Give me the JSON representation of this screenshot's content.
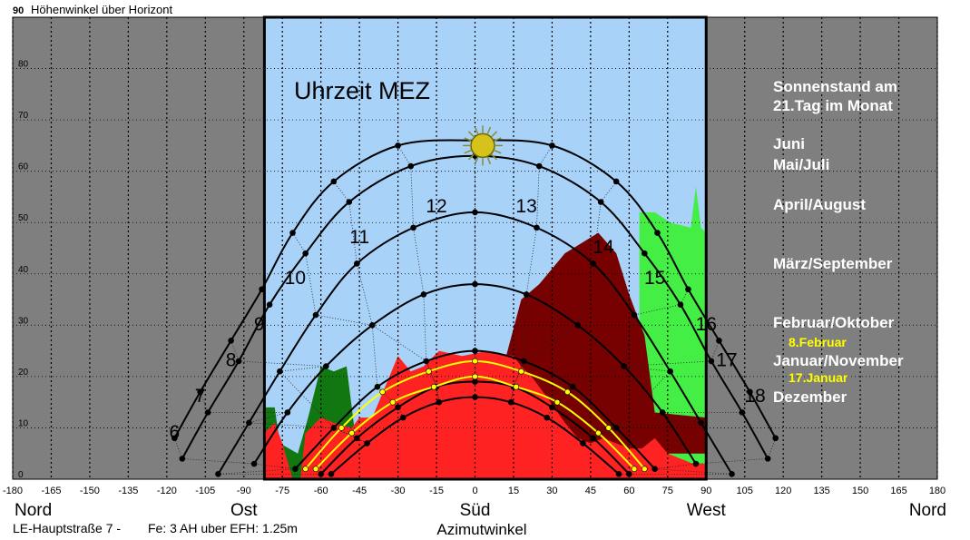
{
  "chart_data": {
    "type": "line",
    "y_axis_label_max": "90",
    "y_axis_title": "Höhenwinkel über Horizont",
    "x_axis_title": "Azimutwinkel",
    "xlim": [
      -180,
      180
    ],
    "ylim": [
      0,
      90
    ],
    "x_ticks": [
      -180,
      -165,
      -150,
      -135,
      -120,
      -105,
      -90,
      -75,
      -60,
      -45,
      -30,
      -15,
      0,
      15,
      30,
      45,
      60,
      75,
      90,
      105,
      120,
      135,
      150,
      165,
      180
    ],
    "y_ticks": [
      0,
      10,
      20,
      30,
      40,
      50,
      60,
      70,
      80
    ],
    "direction_labels": [
      {
        "text": "Nord",
        "az": -180
      },
      {
        "text": "Ost",
        "az": -90
      },
      {
        "text": "Süd",
        "az": 0
      },
      {
        "text": "West",
        "az": 90
      },
      {
        "text": "Nord",
        "az": 180
      }
    ],
    "time_heading": "Uhrzeit MEZ",
    "hour_labels": [
      {
        "text": "6",
        "az": -117,
        "alt": 8
      },
      {
        "text": "7",
        "az": -107,
        "alt": 15
      },
      {
        "text": "8",
        "az": -95,
        "alt": 22
      },
      {
        "text": "9",
        "az": -84,
        "alt": 29
      },
      {
        "text": "10",
        "az": -70,
        "alt": 38
      },
      {
        "text": "11",
        "az": -45,
        "alt": 46
      },
      {
        "text": "12",
        "az": -15,
        "alt": 52
      },
      {
        "text": "13",
        "az": 20,
        "alt": 52
      },
      {
        "text": "14",
        "az": 50,
        "alt": 44
      },
      {
        "text": "15",
        "az": 70,
        "alt": 38
      },
      {
        "text": "16",
        "az": 90,
        "alt": 29
      },
      {
        "text": "17",
        "az": 98,
        "alt": 22
      },
      {
        "text": "18",
        "az": 109,
        "alt": 15
      }
    ],
    "legend_title": [
      "Sonnenstand am",
      "21.Tag im Monat"
    ],
    "legend": [
      {
        "text": "Juni",
        "color": "#ffffff"
      },
      {
        "text": "Mai/Juli",
        "color": "#ffffff"
      },
      {
        "text": "April/August",
        "color": "#ffffff"
      },
      {
        "text": "März/September",
        "color": "#ffffff"
      },
      {
        "text": "Februar/Oktober",
        "color": "#ffffff"
      },
      {
        "text": "8.Februar",
        "color": "#ffff00"
      },
      {
        "text": "Januar/November",
        "color": "#ffffff"
      },
      {
        "text": "17.Januar",
        "color": "#ffff00"
      },
      {
        "text": "Dezember",
        "color": "#ffffff"
      }
    ],
    "series": [
      {
        "name": "Juni",
        "color": "#000000",
        "points": [
          [
            -117,
            8
          ],
          [
            -107,
            17
          ],
          [
            -95,
            27
          ],
          [
            -83,
            37
          ],
          [
            -71,
            48
          ],
          [
            -55,
            58
          ],
          [
            -30,
            65
          ],
          [
            0,
            66
          ],
          [
            30,
            65
          ],
          [
            55,
            58
          ],
          [
            71,
            48
          ],
          [
            83,
            37
          ],
          [
            95,
            27
          ],
          [
            107,
            17
          ],
          [
            117,
            8
          ]
        ]
      },
      {
        "name": "Mai/Juli",
        "color": "#000000",
        "points": [
          [
            -114,
            4
          ],
          [
            -104,
            13
          ],
          [
            -92,
            23
          ],
          [
            -80,
            34
          ],
          [
            -66,
            44
          ],
          [
            -49,
            54
          ],
          [
            -25,
            61
          ],
          [
            0,
            63
          ],
          [
            25,
            61
          ],
          [
            49,
            54
          ],
          [
            66,
            44
          ],
          [
            80,
            34
          ],
          [
            92,
            23
          ],
          [
            104,
            13
          ],
          [
            114,
            4
          ]
        ]
      },
      {
        "name": "April/August",
        "color": "#000000",
        "points": [
          [
            -100,
            1
          ],
          [
            -88,
            11
          ],
          [
            -76,
            21
          ],
          [
            -62,
            32
          ],
          [
            -46,
            42
          ],
          [
            -24,
            49
          ],
          [
            0,
            52
          ],
          [
            24,
            49
          ],
          [
            46,
            42
          ],
          [
            62,
            32
          ],
          [
            76,
            21
          ],
          [
            88,
            11
          ],
          [
            100,
            1
          ]
        ]
      },
      {
        "name": "März/September",
        "color": "#000000",
        "points": [
          [
            -86,
            3
          ],
          [
            -73,
            13
          ],
          [
            -58,
            22
          ],
          [
            -40,
            30
          ],
          [
            -20,
            36
          ],
          [
            0,
            38
          ],
          [
            20,
            36
          ],
          [
            40,
            30
          ],
          [
            58,
            22
          ],
          [
            73,
            13
          ],
          [
            86,
            3
          ]
        ]
      },
      {
        "name": "Februar/Oktober",
        "color": "#000000",
        "points": [
          [
            -70,
            2
          ],
          [
            -55,
            10
          ],
          [
            -38,
            18
          ],
          [
            -19,
            23
          ],
          [
            0,
            25
          ],
          [
            19,
            23
          ],
          [
            38,
            18
          ],
          [
            55,
            10
          ],
          [
            70,
            2
          ]
        ]
      },
      {
        "name": "8.Februar",
        "color": "#ffff00",
        "points": [
          [
            -66,
            2
          ],
          [
            -52,
            10
          ],
          [
            -36,
            17
          ],
          [
            -18,
            21
          ],
          [
            0,
            23
          ],
          [
            18,
            21
          ],
          [
            36,
            17
          ],
          [
            52,
            10
          ],
          [
            66,
            2
          ]
        ]
      },
      {
        "name": "Januar/November",
        "color": "#000000",
        "points": [
          [
            -60,
            1
          ],
          [
            -46,
            8
          ],
          [
            -30,
            14
          ],
          [
            -15,
            18
          ],
          [
            0,
            19
          ],
          [
            15,
            18
          ],
          [
            30,
            14
          ],
          [
            46,
            8
          ],
          [
            60,
            1
          ]
        ]
      },
      {
        "name": "17.Januar",
        "color": "#ffff00",
        "points": [
          [
            -62,
            2
          ],
          [
            -48,
            9
          ],
          [
            -32,
            15
          ],
          [
            -16,
            18
          ],
          [
            0,
            20
          ],
          [
            16,
            18
          ],
          [
            32,
            15
          ],
          [
            48,
            9
          ],
          [
            62,
            2
          ]
        ]
      },
      {
        "name": "Dezember",
        "color": "#000000",
        "points": [
          [
            -56,
            1
          ],
          [
            -42,
            7
          ],
          [
            -28,
            12
          ],
          [
            -14,
            15
          ],
          [
            0,
            16
          ],
          [
            14,
            15
          ],
          [
            28,
            12
          ],
          [
            42,
            7
          ],
          [
            56,
            1
          ]
        ]
      }
    ],
    "horizon_obstructions": [
      {
        "kind": "trees",
        "color": "#117711",
        "points": [
          [
            -82,
            0
          ],
          [
            -82,
            14
          ],
          [
            -78,
            14
          ],
          [
            -76,
            7
          ],
          [
            -69,
            5
          ],
          [
            -65,
            12
          ],
          [
            -60,
            22
          ],
          [
            -55,
            21
          ],
          [
            -50,
            22
          ],
          [
            -47,
            10
          ],
          [
            -43,
            6
          ],
          [
            -37,
            0
          ]
        ]
      },
      {
        "kind": "trees",
        "color": "#44ee44",
        "points": [
          [
            64,
            10
          ],
          [
            64,
            52
          ],
          [
            70,
            52
          ],
          [
            76,
            50
          ],
          [
            84,
            49
          ],
          [
            86,
            57
          ],
          [
            88,
            49
          ],
          [
            90,
            48
          ],
          [
            90,
            0
          ],
          [
            70,
            0
          ]
        ]
      },
      {
        "kind": "building",
        "color": "#770000",
        "points": [
          [
            10,
            20
          ],
          [
            18,
            35
          ],
          [
            25,
            38
          ],
          [
            35,
            44
          ],
          [
            48,
            48
          ],
          [
            55,
            44
          ],
          [
            60,
            36
          ],
          [
            66,
            28
          ],
          [
            70,
            13
          ],
          [
            90,
            12
          ],
          [
            90,
            5
          ],
          [
            65,
            5
          ],
          [
            45,
            4
          ],
          [
            30,
            5
          ],
          [
            15,
            8
          ]
        ]
      },
      {
        "kind": "building",
        "color": "#ff2222",
        "points": [
          [
            -82,
            0
          ],
          [
            -82,
            9
          ],
          [
            -78,
            11
          ],
          [
            -75,
            7
          ],
          [
            -71,
            0
          ],
          [
            -68,
            0
          ],
          [
            -66,
            9
          ],
          [
            -60,
            12
          ],
          [
            -55,
            11
          ],
          [
            -48,
            10
          ],
          [
            -45,
            12
          ],
          [
            -40,
            12
          ],
          [
            -30,
            24
          ],
          [
            -25,
            21
          ],
          [
            -20,
            22
          ],
          [
            -14,
            25
          ],
          [
            -5,
            24
          ],
          [
            5,
            25
          ],
          [
            15,
            24
          ],
          [
            18,
            22
          ],
          [
            22,
            20
          ],
          [
            28,
            16
          ],
          [
            35,
            11
          ],
          [
            40,
            8
          ],
          [
            45,
            7
          ],
          [
            50,
            8
          ],
          [
            55,
            7
          ],
          [
            60,
            6
          ],
          [
            65,
            6
          ],
          [
            70,
            8
          ],
          [
            75,
            5
          ],
          [
            80,
            4
          ],
          [
            85,
            3
          ],
          [
            90,
            3
          ],
          [
            90,
            0
          ]
        ]
      }
    ],
    "sun": {
      "az": 3,
      "alt": 65
    },
    "footer_location": "LE-Hauptstraße 7 -",
    "footer_params": "Fe: 3  AH uber EFH:  1.25m"
  }
}
